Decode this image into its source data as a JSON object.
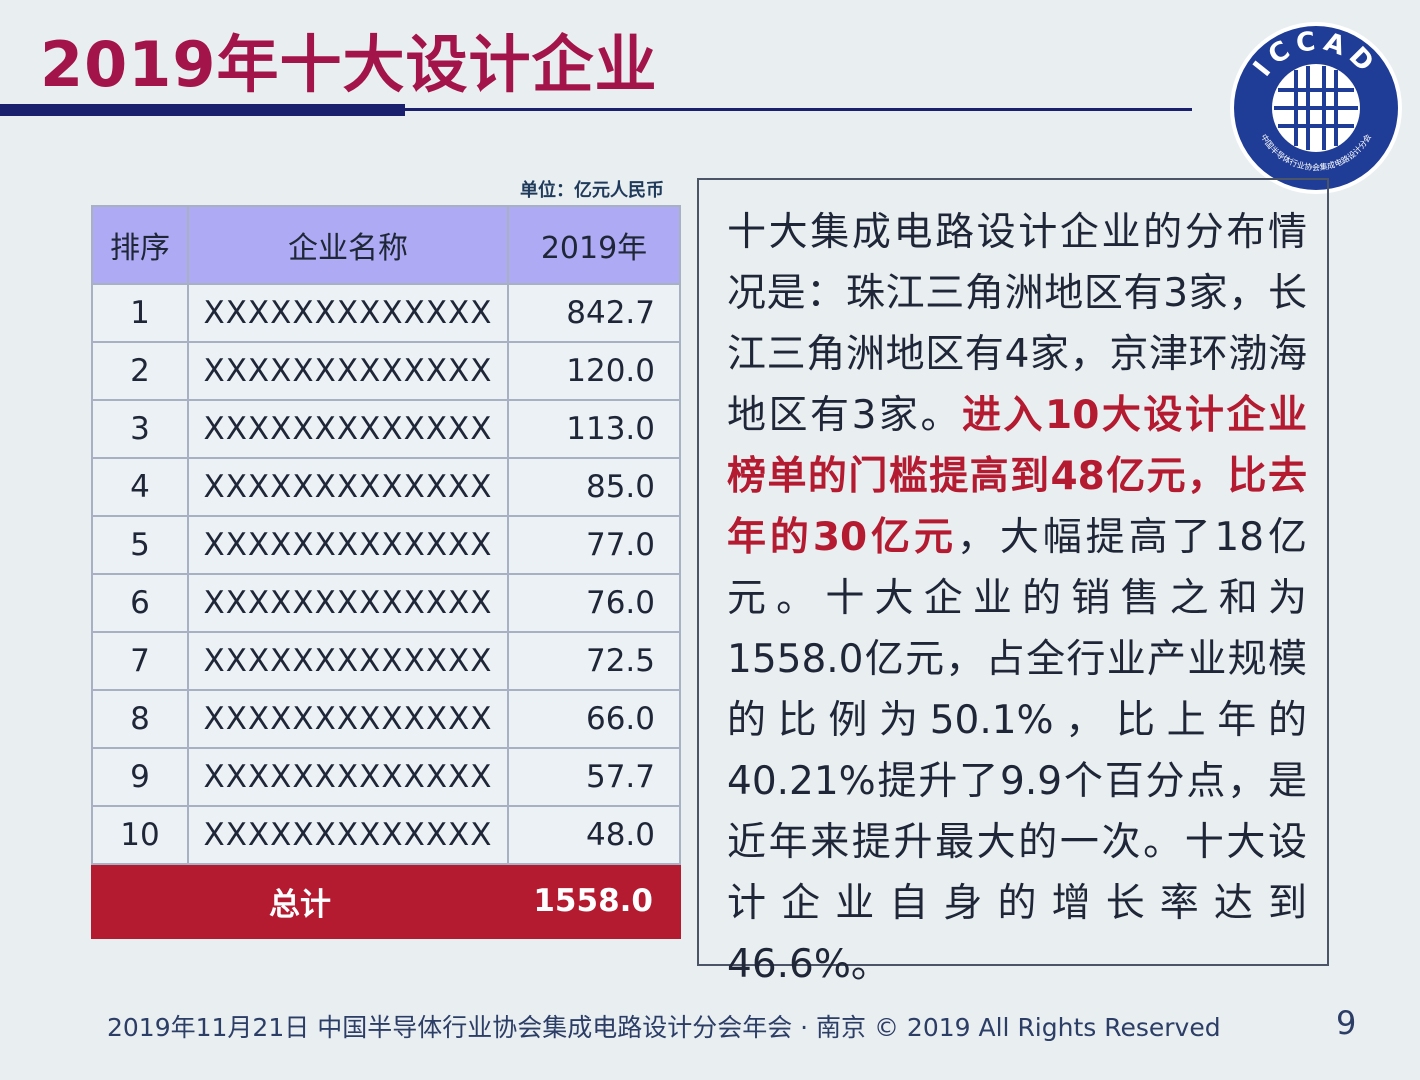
{
  "title": "2019年十大设计企业",
  "logo": {
    "acronym": "ICCAD",
    "org_name": "中国半导体行业协会集成电路设计分会"
  },
  "unit_note": "单位：亿元人民币",
  "table": {
    "headers": [
      "排序",
      "企业名称",
      "2019年"
    ],
    "rows": [
      {
        "rank": "1",
        "name": "XXXXXXXXXXXXX",
        "value": "842.7"
      },
      {
        "rank": "2",
        "name": "XXXXXXXXXXXXX",
        "value": "120.0"
      },
      {
        "rank": "3",
        "name": "XXXXXXXXXXXXX",
        "value": "113.0"
      },
      {
        "rank": "4",
        "name": "XXXXXXXXXXXXX",
        "value": "85.0"
      },
      {
        "rank": "5",
        "name": "XXXXXXXXXXXXX",
        "value": "77.0"
      },
      {
        "rank": "6",
        "name": "XXXXXXXXXXXXX",
        "value": "76.0"
      },
      {
        "rank": "7",
        "name": "XXXXXXXXXXXXX",
        "value": "72.5"
      },
      {
        "rank": "8",
        "name": "XXXXXXXXXXXXX",
        "value": "66.0"
      },
      {
        "rank": "9",
        "name": "XXXXXXXXXXXXX",
        "value": "57.7"
      },
      {
        "rank": "10",
        "name": "XXXXXXXXXXXXX",
        "value": "48.0"
      }
    ],
    "total_label": "总计",
    "total_value": "1558.0"
  },
  "description": {
    "part1": "十大集成电路设计企业的分布情况是：珠江三角洲地区有3家，长江三角洲地区有4家，京津环渤海地区有3家。",
    "highlight": "进入10大设计企业榜单的门槛提高到48亿元，比去年的30亿元",
    "part2": "，大幅提高了18亿元。十大企业的销售之和为1558.0亿元，占全行业产业规模的比例为50.1%，比上年的40.21%提升了9.9个百分点，是近年来提升最大的一次。十大设计企业自身的增长率达到46.6%。"
  },
  "footer": "2019年11月21日 中国半导体行业协会集成电路设计分会年会 · 南京 © 2019 All Rights Reserved",
  "page_number": "9",
  "colors": {
    "title": "#a3144a",
    "navy": "#1a1f6e",
    "header_bg": "#aeaaf3",
    "total_bg": "#b41a30",
    "highlight": "#b41a30",
    "logo_blue": "#1f3c96"
  }
}
